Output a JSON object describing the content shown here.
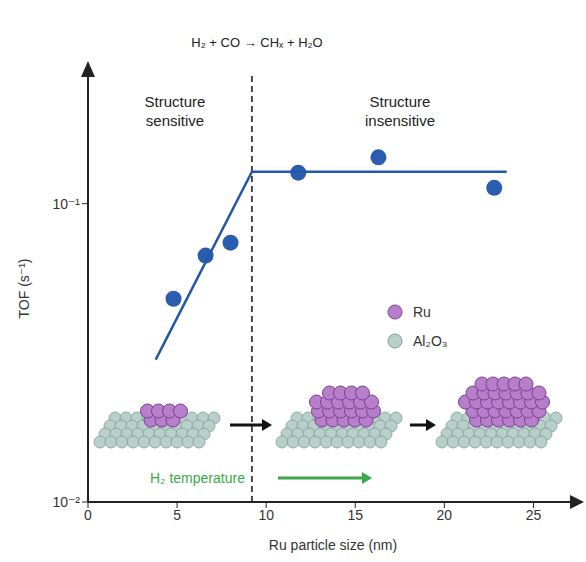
{
  "chart_data": {
    "type": "scatter",
    "title": "H₂ + CO → CHₓ + H₂O",
    "x_label": "Ru particle size (nm)",
    "y_label": "TOF (s⁻¹)",
    "log": "y",
    "grid": false,
    "xlim": [
      0,
      27.5
    ],
    "xticks": [
      0,
      5,
      10,
      15,
      20,
      25
    ],
    "ylim": [
      0.01,
      0.27
    ],
    "yticks": [
      {
        "value": 0.01,
        "label": "10⁻²"
      },
      {
        "value": 0.1,
        "label": "10⁻¹"
      }
    ],
    "series": [
      {
        "type": "scatter",
        "x": [
          4.8,
          6.6,
          8.0,
          11.8,
          16.3,
          22.8
        ],
        "values": [
          0.048,
          0.067,
          0.074,
          0.127,
          0.143,
          0.113
        ],
        "color": "#2a5db0",
        "marker": "circle"
      },
      {
        "type": "line",
        "x": [
          3.8,
          9.2,
          23.5
        ],
        "values": [
          0.03,
          0.128,
          0.128
        ],
        "color": "#2457a8",
        "line_style": "solid"
      }
    ],
    "boundary": {
      "x": 9.2,
      "color": "#111111",
      "line_style": "dashed"
    },
    "regions": [
      "Structure sensitive",
      "Structure insensitive"
    ],
    "legend": "right",
    "legend_entries": [
      {
        "name": "Ru",
        "color": "#b77fc9"
      },
      {
        "name": "Al₂O₃",
        "color": "#b8cfca"
      }
    ],
    "annotation": {
      "text": "H₂ temperature",
      "color": "#3aa84a"
    }
  }
}
